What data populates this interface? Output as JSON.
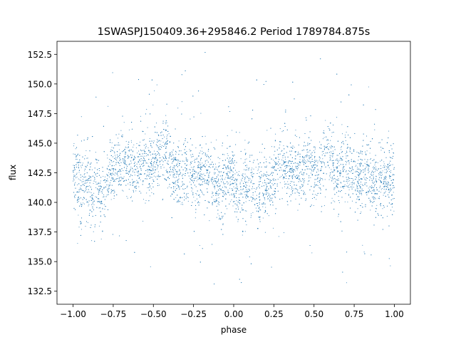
{
  "chart_data": {
    "type": "scatter",
    "title": "1SWASPJ150409.36+295846.2 Period 1789784.875s",
    "xlabel": "phase",
    "ylabel": "flux",
    "xlim": [
      -1.1,
      1.1
    ],
    "ylim": [
      131.4,
      153.6
    ],
    "x_ticks": [
      -1.0,
      -0.75,
      -0.5,
      -0.25,
      0.0,
      0.25,
      0.5,
      0.75,
      1.0
    ],
    "x_tick_labels": [
      "−1.00",
      "−0.75",
      "−0.50",
      "−0.25",
      "0.00",
      "0.25",
      "0.50",
      "0.75",
      "1.00"
    ],
    "y_ticks": [
      132.5,
      135.0,
      137.5,
      140.0,
      142.5,
      145.0,
      147.5,
      150.0,
      152.5
    ],
    "y_tick_labels": [
      "132.5",
      "135.0",
      "137.5",
      "140.0",
      "142.5",
      "145.0",
      "147.5",
      "150.0",
      "152.5"
    ],
    "grid": false,
    "point_color": "#1f77b4",
    "series": [
      {
        "x": [
          -1.0,
          -0.98,
          -0.96,
          -0.94,
          -0.92,
          -0.9,
          -0.88,
          -0.86,
          -0.84,
          -0.82,
          -0.8,
          -0.78,
          -0.76,
          -0.74,
          -0.72,
          -0.7,
          -0.68,
          -0.66,
          -0.64,
          -0.62,
          -0.6,
          -0.58,
          -0.56,
          -0.54,
          -0.52,
          -0.5,
          -0.48,
          -0.46,
          -0.44,
          -0.42,
          -0.4,
          -0.38,
          -0.36,
          -0.34,
          -0.32,
          -0.3,
          -0.28,
          -0.26,
          -0.24,
          -0.22,
          -0.2,
          -0.18,
          -0.16,
          -0.14,
          -0.12,
          -0.1,
          -0.08,
          -0.06,
          -0.04,
          -0.02,
          0.0,
          0.02,
          0.04,
          0.06,
          0.08,
          0.1,
          0.12,
          0.14,
          0.16,
          0.18,
          0.2,
          0.22,
          0.24,
          0.26,
          0.28,
          0.3,
          0.32,
          0.34,
          0.36,
          0.38,
          0.4,
          0.42,
          0.44,
          0.46,
          0.48,
          0.5,
          0.52,
          0.54,
          0.56,
          0.58,
          0.6,
          0.62,
          0.64,
          0.66,
          0.68,
          0.7,
          0.72,
          0.74,
          0.76,
          0.78,
          0.8,
          0.82,
          0.84,
          0.86,
          0.88,
          0.9,
          0.92,
          0.94,
          0.96,
          0.98,
          1.0
        ],
        "y": [
          142.3,
          142.6,
          141.4,
          141.1,
          142.0,
          141.5,
          140.8,
          141.2,
          140.9,
          140.6,
          141.0,
          142.3,
          142.5,
          142.9,
          143.1,
          143.2,
          143.6,
          143.3,
          143.0,
          142.7,
          143.0,
          143.4,
          143.8,
          143.6,
          143.1,
          142.9,
          143.5,
          144.0,
          144.3,
          144.2,
          143.7,
          142.8,
          142.5,
          142.2,
          142.3,
          142.7,
          143.2,
          142.4,
          142.0,
          142.2,
          142.7,
          142.5,
          142.1,
          141.9,
          141.6,
          141.5,
          141.3,
          141.8,
          142.2,
          142.0,
          141.9,
          141.4,
          140.9,
          141.2,
          141.5,
          141.8,
          141.3,
          141.0,
          140.8,
          140.9,
          141.3,
          141.7,
          142.1,
          142.6,
          143.3,
          143.5,
          143.2,
          142.8,
          142.6,
          142.9,
          142.6,
          142.4,
          143.0,
          143.4,
          142.9,
          142.8,
          142.5,
          142.7,
          143.3,
          143.8,
          143.9,
          143.2,
          142.6,
          142.4,
          142.8,
          143.3,
          142.7,
          142.1,
          142.0,
          141.8,
          142.2,
          142.6,
          142.2,
          141.8,
          141.6,
          141.7,
          141.9,
          141.6,
          141.8,
          142.1,
          141.9
        ],
        "spread": [
          2.2,
          2.4,
          3.0,
          2.8,
          2.5,
          2.6,
          2.5,
          2.8,
          3.0,
          2.6,
          2.4,
          2.2,
          2.1,
          2.0,
          2.1,
          2.2,
          2.2,
          2.2,
          2.1,
          2.0,
          2.1,
          2.2,
          2.3,
          2.3,
          2.1,
          2.2,
          2.3,
          2.3,
          2.6,
          2.5,
          2.4,
          2.2,
          2.3,
          2.4,
          2.4,
          2.4,
          2.3,
          2.2,
          2.1,
          2.0,
          2.1,
          2.2,
          2.2,
          2.3,
          2.3,
          2.3,
          2.3,
          2.2,
          2.1,
          2.2,
          2.3,
          2.5,
          2.6,
          2.5,
          2.5,
          2.3,
          2.4,
          2.5,
          2.7,
          2.6,
          2.5,
          2.3,
          2.2,
          2.3,
          2.3,
          2.2,
          2.1,
          2.0,
          2.0,
          2.1,
          2.1,
          2.1,
          2.2,
          2.2,
          2.2,
          2.2,
          2.2,
          2.3,
          2.4,
          2.6,
          2.6,
          2.4,
          2.4,
          2.3,
          2.3,
          2.4,
          2.3,
          2.2,
          2.2,
          2.3,
          2.3,
          2.2,
          2.2,
          2.1,
          2.2,
          2.2,
          2.2,
          2.2,
          2.3,
          2.2,
          2.2
        ]
      }
    ]
  }
}
